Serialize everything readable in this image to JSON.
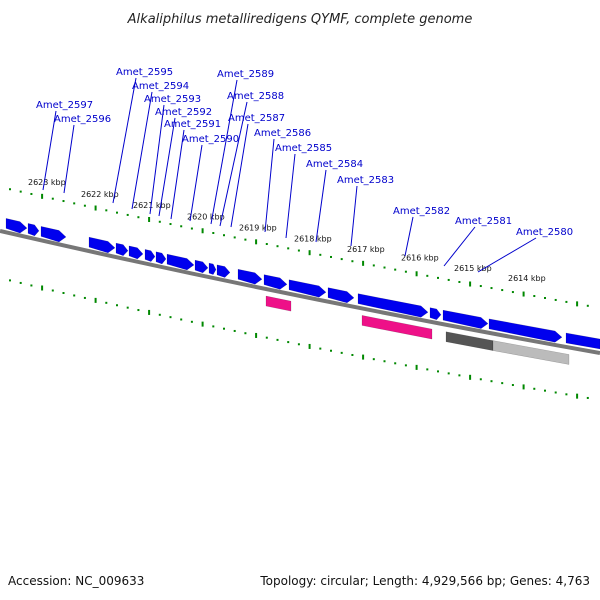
{
  "title": "Alkaliphilus metalliredigens QYMF, complete genome",
  "footer": {
    "accession": "Accession: NC_009633",
    "topology": "Topology: circular; Length: 4,929,566 bp; Genes: 4,763"
  },
  "colors": {
    "gene": "#0000ee",
    "rna": "#ee1188",
    "pseudo_dark": "#555555",
    "pseudo_light": "#bbbbbb",
    "tick": "#008800",
    "backbone": "#777777",
    "label_line": "#0000cc"
  },
  "kbp_ticks": [
    "2623 kbp",
    "2622 kbp",
    "2621 kbp",
    "2620 kbp",
    "2619 kbp",
    "2618 kbp",
    "2617 kbp",
    "2616 kbp",
    "2615 kbp",
    "2614 kbp"
  ],
  "gene_labels": [
    "Amet_2597",
    "Amet_2596",
    "Amet_2595",
    "Amet_2594",
    "Amet_2593",
    "Amet_2592",
    "Amet_2591",
    "Amet_2590",
    "Amet_2589",
    "Amet_2588",
    "Amet_2587",
    "Amet_2586",
    "Amet_2585",
    "Amet_2584",
    "Amet_2583",
    "Amet_2582",
    "Amet_2581",
    "Amet_2580"
  ]
}
